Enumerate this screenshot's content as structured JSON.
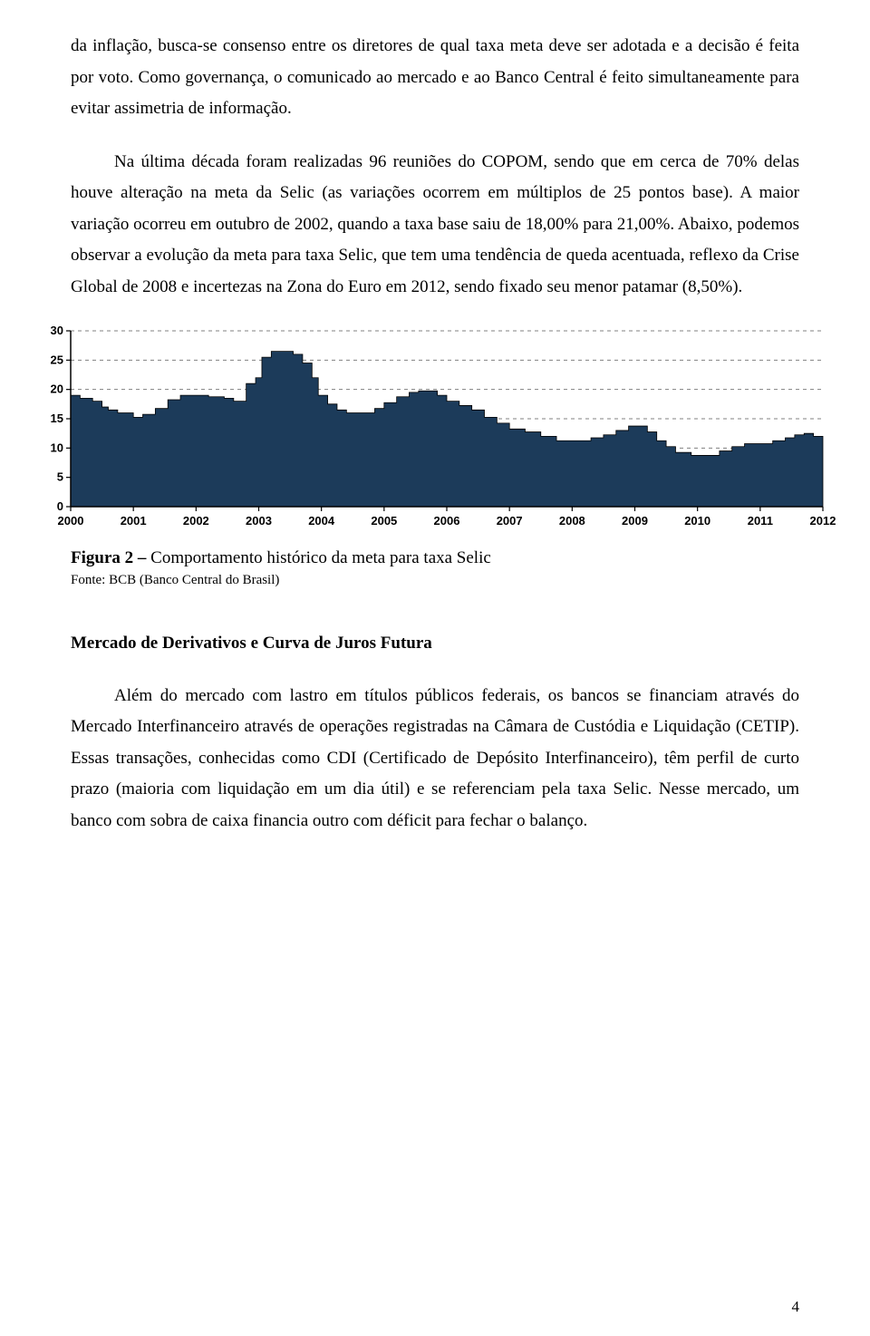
{
  "paragraphs": {
    "p1": "da inflação, busca-se consenso entre os diretores de qual taxa meta deve ser adotada e a decisão é feita por voto. Como governança, o comunicado ao mercado e ao Banco Central é feito simultaneamente para evitar assimetria de informação.",
    "p2": "Na última década foram realizadas 96 reuniões do COPOM, sendo que em cerca de 70% delas houve alteração na meta da Selic (as variações ocorrem em múltiplos de 25 pontos base). A maior variação ocorreu em outubro de 2002, quando a taxa base saiu de 18,00% para 21,00%. Abaixo, podemos observar a evolução da meta para taxa Selic, que tem uma tendência de queda acentuada, reflexo da Crise Global de 2008 e incertezas na Zona do Euro em 2012, sendo fixado seu menor patamar (8,50%).",
    "p3": "Além do mercado com lastro em títulos públicos federais, os bancos se financiam através do Mercado Interfinanceiro através de operações registradas na Câmara de Custódia e Liquidação (CETIP). Essas transações, conhecidas como CDI (Certificado de Depósito Interfinanceiro), têm perfil de curto prazo (maioria com liquidação em um dia útil) e se referenciam pela taxa Selic. Nesse mercado, um banco com sobra de caixa financia outro com déficit para fechar o balanço."
  },
  "figure": {
    "caption_bold": "Figura 2 – ",
    "caption_rest": "Comportamento histórico da meta para taxa Selic",
    "source": "Fonte: BCB (Banco Central do Brasil)"
  },
  "section_heading": "Mercado de Derivativos e Curva de Juros Futura",
  "page_number": "4",
  "chart": {
    "type": "area-step",
    "background_color": "#ffffff",
    "plot_border_color": "#000000",
    "grid_color": "#808080",
    "grid_dash": "4,4",
    "fill_color": "#1c3b5a",
    "line_color": "#000000",
    "ylim": [
      0,
      30
    ],
    "ytick_step": 5,
    "yticks": [
      0,
      5,
      10,
      15,
      20,
      25,
      30
    ],
    "xlim": [
      2000,
      2012
    ],
    "xticks": [
      2000,
      2001,
      2002,
      2003,
      2004,
      2005,
      2006,
      2007,
      2008,
      2009,
      2010,
      2011,
      2012
    ],
    "tick_fontsize": 13,
    "tick_font_weight": "bold",
    "tick_color": "#000000",
    "series": [
      {
        "x": 2000.0,
        "y": 19.0
      },
      {
        "x": 2000.15,
        "y": 18.5
      },
      {
        "x": 2000.35,
        "y": 18.0
      },
      {
        "x": 2000.5,
        "y": 17.0
      },
      {
        "x": 2000.6,
        "y": 16.5
      },
      {
        "x": 2000.75,
        "y": 16.0
      },
      {
        "x": 2001.0,
        "y": 15.25
      },
      {
        "x": 2001.15,
        "y": 15.75
      },
      {
        "x": 2001.35,
        "y": 16.75
      },
      {
        "x": 2001.55,
        "y": 18.25
      },
      {
        "x": 2001.75,
        "y": 19.0
      },
      {
        "x": 2002.0,
        "y": 19.0
      },
      {
        "x": 2002.2,
        "y": 18.75
      },
      {
        "x": 2002.45,
        "y": 18.5
      },
      {
        "x": 2002.6,
        "y": 18.0
      },
      {
        "x": 2002.8,
        "y": 21.0
      },
      {
        "x": 2002.95,
        "y": 22.0
      },
      {
        "x": 2003.05,
        "y": 25.5
      },
      {
        "x": 2003.2,
        "y": 26.5
      },
      {
        "x": 2003.4,
        "y": 26.5
      },
      {
        "x": 2003.55,
        "y": 26.0
      },
      {
        "x": 2003.7,
        "y": 24.5
      },
      {
        "x": 2003.85,
        "y": 22.0
      },
      {
        "x": 2003.95,
        "y": 19.0
      },
      {
        "x": 2004.1,
        "y": 17.5
      },
      {
        "x": 2004.25,
        "y": 16.5
      },
      {
        "x": 2004.4,
        "y": 16.0
      },
      {
        "x": 2004.7,
        "y": 16.0
      },
      {
        "x": 2004.85,
        "y": 16.75
      },
      {
        "x": 2005.0,
        "y": 17.75
      },
      {
        "x": 2005.2,
        "y": 18.75
      },
      {
        "x": 2005.4,
        "y": 19.5
      },
      {
        "x": 2005.55,
        "y": 19.75
      },
      {
        "x": 2005.7,
        "y": 19.75
      },
      {
        "x": 2005.85,
        "y": 19.0
      },
      {
        "x": 2006.0,
        "y": 18.0
      },
      {
        "x": 2006.2,
        "y": 17.25
      },
      {
        "x": 2006.4,
        "y": 16.5
      },
      {
        "x": 2006.6,
        "y": 15.25
      },
      {
        "x": 2006.8,
        "y": 14.25
      },
      {
        "x": 2007.0,
        "y": 13.25
      },
      {
        "x": 2007.25,
        "y": 12.75
      },
      {
        "x": 2007.5,
        "y": 12.0
      },
      {
        "x": 2007.75,
        "y": 11.25
      },
      {
        "x": 2008.0,
        "y": 11.25
      },
      {
        "x": 2008.3,
        "y": 11.75
      },
      {
        "x": 2008.5,
        "y": 12.25
      },
      {
        "x": 2008.7,
        "y": 13.0
      },
      {
        "x": 2008.9,
        "y": 13.75
      },
      {
        "x": 2009.05,
        "y": 13.75
      },
      {
        "x": 2009.2,
        "y": 12.75
      },
      {
        "x": 2009.35,
        "y": 11.25
      },
      {
        "x": 2009.5,
        "y": 10.25
      },
      {
        "x": 2009.65,
        "y": 9.25
      },
      {
        "x": 2009.9,
        "y": 8.75
      },
      {
        "x": 2010.15,
        "y": 8.75
      },
      {
        "x": 2010.35,
        "y": 9.5
      },
      {
        "x": 2010.55,
        "y": 10.25
      },
      {
        "x": 2010.75,
        "y": 10.75
      },
      {
        "x": 2011.0,
        "y": 10.75
      },
      {
        "x": 2011.2,
        "y": 11.25
      },
      {
        "x": 2011.4,
        "y": 11.75
      },
      {
        "x": 2011.55,
        "y": 12.25
      },
      {
        "x": 2011.7,
        "y": 12.5
      },
      {
        "x": 2011.85,
        "y": 12.0
      },
      {
        "x": 2012.0,
        "y": 11.0
      }
    ]
  }
}
